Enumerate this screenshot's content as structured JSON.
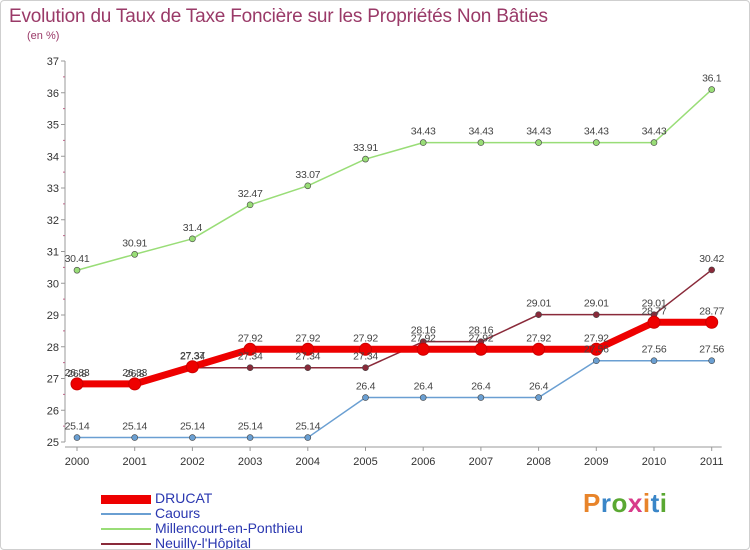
{
  "title": "Evolution du Taux de Taxe Foncière sur les Propriétés Non Bâties",
  "unit": "(en %)",
  "logo": {
    "text": "Proxiti",
    "colors": [
      "#e8842a",
      "#3a86c8",
      "#5aa832",
      "#d83a8a",
      "#e8842a",
      "#3a86c8",
      "#5aa832"
    ]
  },
  "chart_data": {
    "type": "line",
    "categories": [
      "2000",
      "2001",
      "2002",
      "2003",
      "2004",
      "2005",
      "2006",
      "2007",
      "2008",
      "2009",
      "2010",
      "2011"
    ],
    "ylim": [
      25,
      37
    ],
    "yticks": [
      "25",
      "26",
      "27",
      "28",
      "29",
      "30",
      "31",
      "32",
      "33",
      "34",
      "35",
      "36",
      "37"
    ],
    "grid": false,
    "series": [
      {
        "name": "DRUCAT",
        "color": "#ee0000",
        "values": [
          26.83,
          26.83,
          27.37,
          27.92,
          27.92,
          27.92,
          27.92,
          27.92,
          27.92,
          27.92,
          28.77,
          28.77
        ],
        "labels": [
          "26.83",
          "26.83",
          "27.37",
          "27.92",
          "27.92",
          "27.92",
          "27.92",
          "27.92",
          "27.92",
          "27.92",
          "28.77",
          "28.77"
        ]
      },
      {
        "name": "Caours",
        "color": "#6a9fd2",
        "values": [
          25.14,
          25.14,
          25.14,
          25.14,
          25.14,
          26.4,
          26.4,
          26.4,
          26.4,
          27.56,
          27.56,
          27.56
        ],
        "labels": [
          "25.14",
          "25.14",
          "25.14",
          "25.14",
          "25.14",
          "26.4",
          "26.4",
          "26.4",
          "26.4",
          "27.56",
          "27.56",
          "27.56"
        ]
      },
      {
        "name": "Millencourt-en-Ponthieu",
        "color": "#99dd77",
        "values": [
          30.41,
          30.91,
          31.4,
          32.47,
          33.07,
          33.91,
          34.43,
          34.43,
          34.43,
          34.43,
          34.43,
          36.1
        ],
        "labels": [
          "30.41",
          "30.91",
          "31.4",
          "32.47",
          "33.07",
          "33.91",
          "34.43",
          "34.43",
          "34.43",
          "34.43",
          "34.43",
          "36.1"
        ]
      },
      {
        "name": "Neuilly-l'Hôpital",
        "color": "#8a2a3a",
        "values": [
          26.8,
          26.8,
          27.34,
          27.34,
          27.34,
          27.34,
          28.16,
          28.16,
          29.01,
          29.01,
          29.01,
          30.42
        ],
        "labels": [
          "26.8",
          "26.8",
          "27.34",
          "27.34",
          "27.34",
          "27.34",
          "28.16",
          "28.16",
          "29.01",
          "29.01",
          "29.01",
          "30.42"
        ]
      }
    ]
  }
}
